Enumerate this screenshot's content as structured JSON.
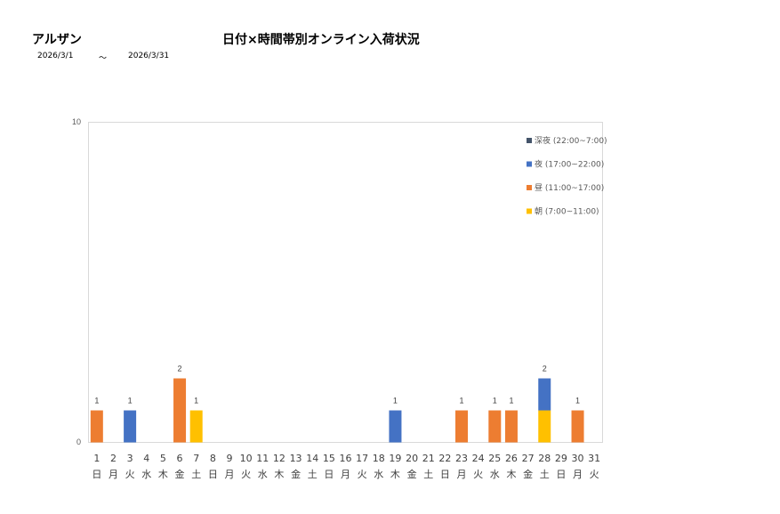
{
  "header": {
    "store_name": "アルザン",
    "title": "日付×時間帯別オンライン入荷状況",
    "start_date": "2026/3/1",
    "separator": "～",
    "end_date": "2026/3/31"
  },
  "chart_data": {
    "type": "bar",
    "stacked": true,
    "title": "日付×時間帯別オンライン入荷状況",
    "xlabel": "",
    "ylabel": "",
    "ylim": [
      0,
      10
    ],
    "y_ticks": [
      "0",
      "10"
    ],
    "grid": false,
    "legend_position": "top-right",
    "categories": [
      "1",
      "2",
      "3",
      "4",
      "5",
      "6",
      "7",
      "8",
      "9",
      "10",
      "11",
      "12",
      "13",
      "14",
      "15",
      "16",
      "17",
      "18",
      "19",
      "20",
      "21",
      "22",
      "23",
      "24",
      "25",
      "26",
      "27",
      "28",
      "29",
      "30",
      "31"
    ],
    "weekdays": [
      "日",
      "月",
      "火",
      "水",
      "木",
      "金",
      "土",
      "日",
      "月",
      "火",
      "水",
      "木",
      "金",
      "土",
      "日",
      "月",
      "火",
      "水",
      "木",
      "金",
      "土",
      "日",
      "月",
      "火",
      "水",
      "木",
      "金",
      "土",
      "日",
      "月",
      "火"
    ],
    "series": [
      {
        "name": "朝 (7:00~11:00)",
        "color": "#FFC000",
        "values": [
          0,
          0,
          0,
          0,
          0,
          0,
          1,
          0,
          0,
          0,
          0,
          0,
          0,
          0,
          0,
          0,
          0,
          0,
          0,
          0,
          0,
          0,
          0,
          0,
          0,
          0,
          0,
          1,
          0,
          0,
          0
        ]
      },
      {
        "name": "昼 (11:00~17:00)",
        "color": "#ED7D31",
        "values": [
          1,
          0,
          0,
          0,
          0,
          2,
          0,
          0,
          0,
          0,
          0,
          0,
          0,
          0,
          0,
          0,
          0,
          0,
          0,
          0,
          0,
          0,
          1,
          0,
          1,
          1,
          0,
          0,
          0,
          1,
          0
        ]
      },
      {
        "name": "夜 (17:00~22:00)",
        "color": "#4472C4",
        "values": [
          0,
          0,
          1,
          0,
          0,
          0,
          0,
          0,
          0,
          0,
          0,
          0,
          0,
          0,
          0,
          0,
          0,
          0,
          1,
          0,
          0,
          0,
          0,
          0,
          0,
          0,
          0,
          1,
          0,
          0,
          0
        ]
      },
      {
        "name": "深夜 (22:00~7:00)",
        "color": "#44546A",
        "values": [
          0,
          0,
          0,
          0,
          0,
          0,
          0,
          0,
          0,
          0,
          0,
          0,
          0,
          0,
          0,
          0,
          0,
          0,
          0,
          0,
          0,
          0,
          0,
          0,
          0,
          0,
          0,
          0,
          0,
          0,
          0
        ]
      }
    ],
    "totals": [
      1,
      0,
      1,
      0,
      0,
      2,
      1,
      0,
      0,
      0,
      0,
      0,
      0,
      0,
      0,
      0,
      0,
      0,
      1,
      0,
      0,
      0,
      1,
      0,
      1,
      1,
      0,
      2,
      0,
      1,
      0
    ]
  }
}
